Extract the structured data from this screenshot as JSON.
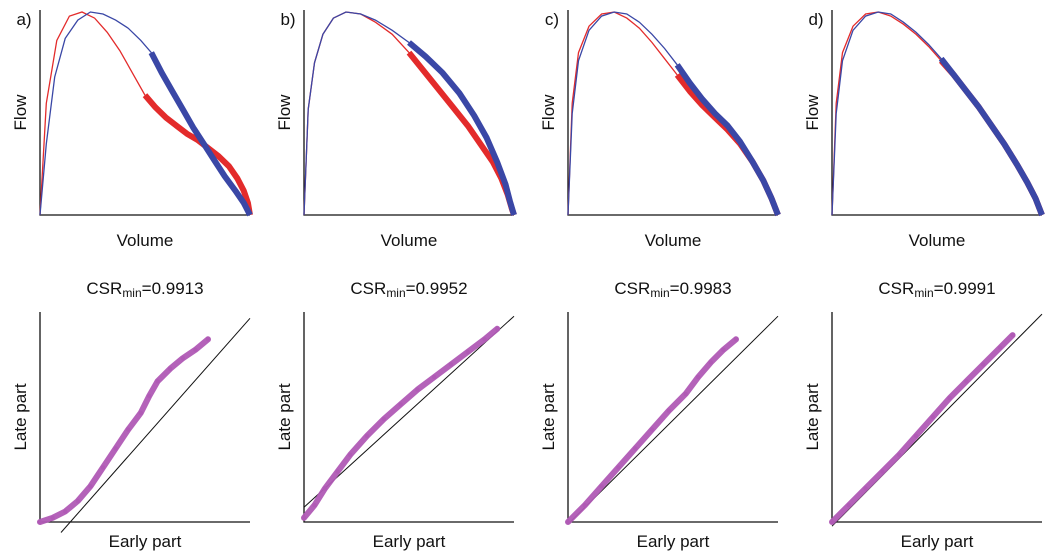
{
  "chart_data": [
    {
      "panel": "a",
      "panel_label": "a)",
      "type": "line",
      "xlabel": "Volume",
      "ylabel": "Flow",
      "colors": {
        "red": "#e32b2b",
        "blue": "#3a47a6"
      },
      "series": [
        {
          "x": [
            0,
            0.03,
            0.08,
            0.14,
            0.2,
            0.26,
            0.32,
            0.38,
            0.44,
            0.5,
            0.55,
            0.6,
            0.65,
            0.7,
            0.75,
            0.8,
            0.85,
            0.9,
            0.94,
            0.97,
            0.99,
            1.0
          ],
          "y": [
            0,
            0.55,
            0.86,
            0.98,
            1.0,
            0.97,
            0.9,
            0.81,
            0.7,
            0.59,
            0.53,
            0.48,
            0.44,
            0.4,
            0.37,
            0.33,
            0.29,
            0.24,
            0.18,
            0.12,
            0.06,
            0
          ],
          "thick_from": 0.5
        },
        {
          "x": [
            0,
            0.03,
            0.07,
            0.12,
            0.18,
            0.24,
            0.3,
            0.36,
            0.42,
            0.48,
            0.53,
            0.58,
            0.63,
            0.68,
            0.73,
            0.78,
            0.83,
            0.88,
            0.93,
            0.97,
            1.0
          ],
          "y": [
            0,
            0.35,
            0.68,
            0.87,
            0.96,
            1.0,
            0.99,
            0.96,
            0.92,
            0.86,
            0.8,
            0.7,
            0.61,
            0.52,
            0.43,
            0.35,
            0.27,
            0.19,
            0.12,
            0.06,
            0
          ],
          "thick_from": 0.53
        }
      ]
    },
    {
      "panel": "b",
      "panel_label": "b)",
      "type": "line",
      "xlabel": "Volume",
      "ylabel": "Flow",
      "series": [
        {
          "x": [
            0,
            0.02,
            0.05,
            0.09,
            0.14,
            0.2,
            0.27,
            0.34,
            0.42,
            0.5,
            0.57,
            0.64,
            0.71,
            0.78,
            0.84,
            0.9,
            0.94,
            0.97,
            0.99,
            1.0
          ],
          "y": [
            0,
            0.52,
            0.75,
            0.89,
            0.97,
            1.0,
            0.99,
            0.95,
            0.89,
            0.8,
            0.71,
            0.62,
            0.53,
            0.44,
            0.35,
            0.26,
            0.18,
            0.1,
            0.03,
            0
          ],
          "thick_from": 0.48
        },
        {
          "x": [
            0,
            0.02,
            0.05,
            0.09,
            0.14,
            0.2,
            0.27,
            0.34,
            0.42,
            0.5,
            0.58,
            0.66,
            0.74,
            0.81,
            0.87,
            0.92,
            0.96,
            0.98,
            1.0
          ],
          "y": [
            0,
            0.52,
            0.75,
            0.89,
            0.97,
            1.0,
            0.99,
            0.96,
            0.91,
            0.85,
            0.78,
            0.7,
            0.6,
            0.49,
            0.38,
            0.26,
            0.15,
            0.07,
            0
          ],
          "thick_from": 0.5
        }
      ]
    },
    {
      "panel": "c",
      "panel_label": "c)",
      "type": "line",
      "xlabel": "Volume",
      "ylabel": "Flow",
      "series": [
        {
          "x": [
            0,
            0.02,
            0.05,
            0.1,
            0.16,
            0.22,
            0.28,
            0.34,
            0.4,
            0.46,
            0.52,
            0.58,
            0.64,
            0.7,
            0.76,
            0.82,
            0.88,
            0.93,
            0.97,
            1.0
          ],
          "y": [
            0,
            0.55,
            0.8,
            0.93,
            0.99,
            1.0,
            0.97,
            0.92,
            0.85,
            0.77,
            0.69,
            0.61,
            0.54,
            0.48,
            0.42,
            0.35,
            0.26,
            0.17,
            0.08,
            0
          ],
          "thick_from": 0.48
        },
        {
          "x": [
            0,
            0.02,
            0.05,
            0.1,
            0.16,
            0.22,
            0.28,
            0.34,
            0.4,
            0.46,
            0.52,
            0.58,
            0.64,
            0.7,
            0.76,
            0.82,
            0.88,
            0.93,
            0.97,
            1.0
          ],
          "y": [
            0,
            0.5,
            0.76,
            0.91,
            0.98,
            1.0,
            0.99,
            0.95,
            0.89,
            0.82,
            0.74,
            0.65,
            0.57,
            0.5,
            0.44,
            0.36,
            0.26,
            0.17,
            0.08,
            0
          ],
          "thick_from": 0.5
        }
      ]
    },
    {
      "panel": "d",
      "panel_label": "d)",
      "type": "line",
      "xlabel": "Volume",
      "ylabel": "Flow",
      "series": [
        {
          "x": [
            0,
            0.02,
            0.05,
            0.1,
            0.16,
            0.22,
            0.28,
            0.34,
            0.4,
            0.46,
            0.52,
            0.58,
            0.64,
            0.7,
            0.76,
            0.82,
            0.88,
            0.93,
            0.97,
            1.0
          ],
          "y": [
            0,
            0.55,
            0.8,
            0.93,
            0.99,
            1.0,
            0.98,
            0.94,
            0.89,
            0.83,
            0.76,
            0.69,
            0.61,
            0.53,
            0.44,
            0.35,
            0.25,
            0.16,
            0.08,
            0
          ],
          "thick_from": 0.48
        },
        {
          "x": [
            0,
            0.02,
            0.05,
            0.1,
            0.16,
            0.22,
            0.28,
            0.34,
            0.4,
            0.46,
            0.52,
            0.58,
            0.64,
            0.7,
            0.76,
            0.82,
            0.88,
            0.93,
            0.97,
            1.0
          ],
          "y": [
            0,
            0.5,
            0.76,
            0.91,
            0.98,
            1.0,
            0.99,
            0.95,
            0.9,
            0.84,
            0.77,
            0.69,
            0.61,
            0.53,
            0.44,
            0.35,
            0.25,
            0.16,
            0.08,
            0
          ],
          "thick_from": 0.5
        }
      ]
    },
    {
      "panel": "a",
      "type": "scatter",
      "csr_prefix": "CSR",
      "csr_sub": "min",
      "csr_value": "=0.9913",
      "xlabel": "Early part",
      "ylabel": "Late part",
      "x": [
        0.0,
        0.06,
        0.12,
        0.18,
        0.24,
        0.3,
        0.36,
        0.42,
        0.48,
        0.52,
        0.56,
        0.62,
        0.68,
        0.74,
        0.8
      ],
      "y": [
        0.0,
        0.02,
        0.05,
        0.1,
        0.17,
        0.26,
        0.35,
        0.44,
        0.52,
        0.6,
        0.67,
        0.73,
        0.78,
        0.82,
        0.87
      ],
      "fit_line": {
        "x": [
          0.1,
          1.0
        ],
        "y": [
          -0.05,
          0.97
        ]
      },
      "colors": {
        "scatter": "#b05ab5"
      }
    },
    {
      "panel": "b",
      "type": "scatter",
      "csr_prefix": "CSR",
      "csr_sub": "min",
      "csr_value": "=0.9952",
      "xlabel": "Early part",
      "ylabel": "Late part",
      "x": [
        0.0,
        0.05,
        0.1,
        0.16,
        0.22,
        0.3,
        0.38,
        0.46,
        0.54,
        0.62,
        0.7,
        0.78,
        0.86,
        0.92
      ],
      "y": [
        0.02,
        0.08,
        0.16,
        0.24,
        0.32,
        0.41,
        0.49,
        0.56,
        0.63,
        0.69,
        0.75,
        0.81,
        0.87,
        0.92
      ],
      "fit_line": {
        "x": [
          0.0,
          1.0
        ],
        "y": [
          0.07,
          0.98
        ]
      }
    },
    {
      "panel": "c",
      "type": "scatter",
      "csr_prefix": "CSR",
      "csr_sub": "min",
      "csr_value": "=0.9983",
      "xlabel": "Early part",
      "ylabel": "Late part",
      "x": [
        0.0,
        0.08,
        0.16,
        0.24,
        0.32,
        0.4,
        0.48,
        0.56,
        0.62,
        0.68,
        0.74,
        0.8
      ],
      "y": [
        0.0,
        0.08,
        0.17,
        0.26,
        0.35,
        0.44,
        0.53,
        0.61,
        0.69,
        0.76,
        0.82,
        0.87
      ],
      "fit_line": {
        "x": [
          0.0,
          1.0
        ],
        "y": [
          -0.01,
          0.98
        ]
      }
    },
    {
      "panel": "d",
      "type": "scatter",
      "csr_prefix": "CSR",
      "csr_sub": "min",
      "csr_value": "=0.9991",
      "xlabel": "Early part",
      "ylabel": "Late part",
      "x": [
        0.0,
        0.08,
        0.16,
        0.24,
        0.32,
        0.4,
        0.48,
        0.56,
        0.64,
        0.72,
        0.8,
        0.86
      ],
      "y": [
        0.0,
        0.08,
        0.16,
        0.24,
        0.32,
        0.41,
        0.5,
        0.59,
        0.67,
        0.75,
        0.83,
        0.89
      ],
      "fit_line": {
        "x": [
          0.0,
          1.0
        ],
        "y": [
          -0.02,
          0.99
        ]
      }
    }
  ]
}
